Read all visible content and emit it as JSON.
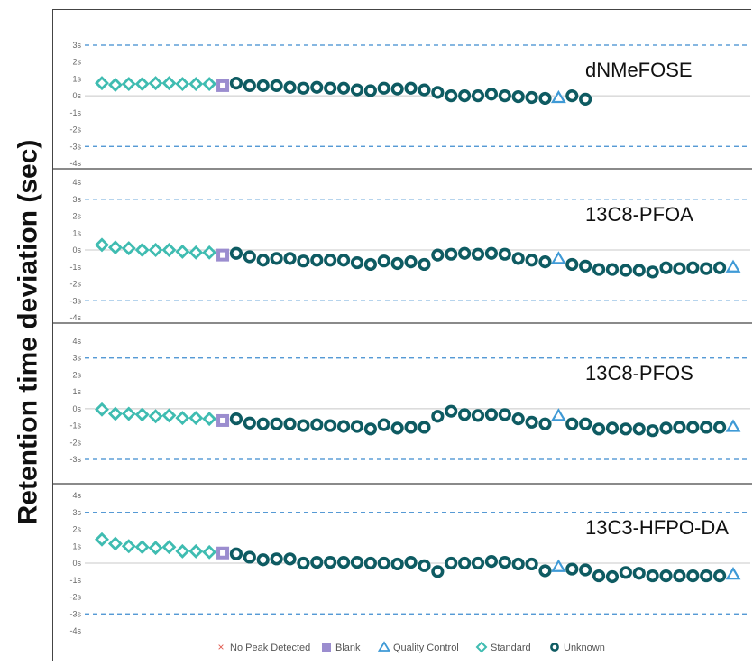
{
  "y_axis_label": "Retention time deviation (sec)",
  "legend": [
    {
      "label": "No Peak Detected",
      "marker": "x-mark",
      "color": "#e05a4f"
    },
    {
      "label": "Blank",
      "marker": "square",
      "color": "#9b8dcf"
    },
    {
      "label": "Quality Control",
      "marker": "triangle",
      "color": "#3f9ad6"
    },
    {
      "label": "Standard",
      "marker": "diamond",
      "color": "#3fbcb1"
    },
    {
      "label": "Unknown",
      "marker": "circle",
      "color": "#0e5b62"
    }
  ],
  "colors": {
    "threshold_line": "#3f8ccf",
    "zero_line": "#c8c8c8",
    "tick_label": "#666666",
    "panel_title": "#111111"
  },
  "chart_data": [
    {
      "type": "scatter",
      "title": "dNMeFOSE",
      "ylim": [
        -4,
        3
      ],
      "yticks": [
        "3s",
        "2s",
        "1s",
        "0s",
        "-1s",
        "-2s",
        "-3s",
        "-4s"
      ],
      "threshold_lines": [
        3,
        -3
      ],
      "series": [
        {
          "name": "Standard",
          "x": [
            1,
            2,
            3,
            4,
            5,
            6,
            7,
            8,
            9
          ],
          "values": [
            0.75,
            0.65,
            0.7,
            0.7,
            0.75,
            0.75,
            0.7,
            0.7,
            0.7
          ]
        },
        {
          "name": "Blank",
          "x": [
            10
          ],
          "values": [
            0.6
          ]
        },
        {
          "name": "Unknown",
          "x": [
            11,
            12,
            13,
            14,
            15,
            16,
            17,
            18,
            19,
            20,
            21,
            22,
            23,
            24,
            25,
            26,
            27,
            28,
            29,
            30,
            31,
            32,
            33,
            34,
            36,
            37
          ],
          "values": [
            0.75,
            0.6,
            0.6,
            0.6,
            0.5,
            0.45,
            0.5,
            0.45,
            0.45,
            0.35,
            0.3,
            0.45,
            0.4,
            0.45,
            0.35,
            0.2,
            0.0,
            0.0,
            0.0,
            0.1,
            0.0,
            -0.05,
            -0.1,
            -0.15,
            0.0,
            -0.2
          ]
        },
        {
          "name": "Quality Control",
          "x": [
            35
          ],
          "values": [
            -0.1
          ]
        }
      ]
    },
    {
      "type": "scatter",
      "title": "13C8-PFOA",
      "ylim": [
        -4,
        4
      ],
      "yticks": [
        "4s",
        "3s",
        "2s",
        "1s",
        "0s",
        "-1s",
        "-2s",
        "-3s",
        "-4s"
      ],
      "threshold_lines": [
        3,
        -3
      ],
      "series": [
        {
          "name": "Standard",
          "x": [
            1,
            2,
            3,
            4,
            5,
            6,
            7,
            8,
            9
          ],
          "values": [
            0.3,
            0.15,
            0.1,
            0.0,
            0.0,
            0.0,
            -0.1,
            -0.15,
            -0.15
          ]
        },
        {
          "name": "Blank",
          "x": [
            10
          ],
          "values": [
            -0.3
          ]
        },
        {
          "name": "Unknown",
          "x": [
            11,
            12,
            13,
            14,
            15,
            16,
            17,
            18,
            19,
            20,
            21,
            22,
            23,
            24,
            25,
            26,
            27,
            28,
            29,
            30,
            31,
            32,
            33,
            34,
            36,
            37,
            38,
            39,
            40,
            41,
            42,
            43,
            44,
            45,
            46,
            47
          ],
          "values": [
            -0.2,
            -0.4,
            -0.6,
            -0.5,
            -0.5,
            -0.65,
            -0.6,
            -0.6,
            -0.6,
            -0.75,
            -0.85,
            -0.65,
            -0.8,
            -0.7,
            -0.85,
            -0.3,
            -0.25,
            -0.2,
            -0.25,
            -0.2,
            -0.25,
            -0.5,
            -0.6,
            -0.7,
            -0.85,
            -0.95,
            -1.15,
            -1.15,
            -1.2,
            -1.2,
            -1.3,
            -1.05,
            -1.1,
            -1.05,
            -1.1,
            -1.05
          ]
        },
        {
          "name": "Quality Control",
          "x": [
            35,
            48
          ],
          "values": [
            -0.5,
            -1.0
          ]
        }
      ]
    },
    {
      "type": "scatter",
      "title": "13C8-PFOS",
      "ylim": [
        -3,
        4
      ],
      "yticks": [
        "4s",
        "3s",
        "2s",
        "1s",
        "0s",
        "-1s",
        "-2s",
        "-3s"
      ],
      "threshold_lines": [
        3,
        -3
      ],
      "series": [
        {
          "name": "Standard",
          "x": [
            1,
            2,
            3,
            4,
            5,
            6,
            7,
            8,
            9
          ],
          "values": [
            -0.05,
            -0.3,
            -0.3,
            -0.35,
            -0.45,
            -0.4,
            -0.55,
            -0.55,
            -0.6
          ]
        },
        {
          "name": "Blank",
          "x": [
            10
          ],
          "values": [
            -0.7
          ]
        },
        {
          "name": "Unknown",
          "x": [
            11,
            12,
            13,
            14,
            15,
            16,
            17,
            18,
            19,
            20,
            21,
            22,
            23,
            24,
            25,
            26,
            27,
            28,
            29,
            30,
            31,
            32,
            33,
            34,
            36,
            37,
            38,
            39,
            40,
            41,
            42,
            43,
            44,
            45,
            46,
            47
          ],
          "values": [
            -0.6,
            -0.85,
            -0.9,
            -0.9,
            -0.9,
            -1.0,
            -0.95,
            -1.0,
            -1.05,
            -1.05,
            -1.2,
            -0.95,
            -1.15,
            -1.1,
            -1.1,
            -0.45,
            -0.15,
            -0.35,
            -0.4,
            -0.35,
            -0.35,
            -0.6,
            -0.8,
            -0.9,
            -0.9,
            -0.9,
            -1.2,
            -1.15,
            -1.2,
            -1.2,
            -1.3,
            -1.15,
            -1.1,
            -1.1,
            -1.1,
            -1.1
          ]
        },
        {
          "name": "Quality Control",
          "x": [
            35,
            48
          ],
          "values": [
            -0.4,
            -1.05
          ]
        }
      ]
    },
    {
      "type": "scatter",
      "title": "13C3-HFPO-DA",
      "ylim": [
        -4,
        4
      ],
      "yticks": [
        "4s",
        "3s",
        "2s",
        "1s",
        "0s",
        "-1s",
        "-2s",
        "-3s",
        "-4s"
      ],
      "threshold_lines": [
        3,
        -3
      ],
      "series": [
        {
          "name": "Standard",
          "x": [
            1,
            2,
            3,
            4,
            5,
            6,
            7,
            8,
            9
          ],
          "values": [
            1.4,
            1.15,
            1.0,
            0.95,
            0.9,
            0.95,
            0.7,
            0.7,
            0.65
          ]
        },
        {
          "name": "Blank",
          "x": [
            10
          ],
          "values": [
            0.6
          ]
        },
        {
          "name": "Unknown",
          "x": [
            11,
            12,
            13,
            14,
            15,
            16,
            17,
            18,
            19,
            20,
            21,
            22,
            23,
            24,
            25,
            26,
            27,
            28,
            29,
            30,
            31,
            32,
            33,
            34,
            36,
            37,
            38,
            39,
            40,
            41,
            42,
            43,
            44,
            45,
            46,
            47
          ],
          "values": [
            0.55,
            0.35,
            0.2,
            0.25,
            0.25,
            0.0,
            0.05,
            0.05,
            0.05,
            0.05,
            0.0,
            0.0,
            -0.05,
            0.05,
            -0.15,
            -0.5,
            0.0,
            0.0,
            0.0,
            0.1,
            0.05,
            -0.05,
            -0.05,
            -0.45,
            -0.35,
            -0.4,
            -0.75,
            -0.8,
            -0.55,
            -0.6,
            -0.75,
            -0.75,
            -0.75,
            -0.75,
            -0.75,
            -0.75
          ]
        },
        {
          "name": "Quality Control",
          "x": [
            35,
            48
          ],
          "values": [
            -0.2,
            -0.65
          ]
        }
      ]
    }
  ]
}
